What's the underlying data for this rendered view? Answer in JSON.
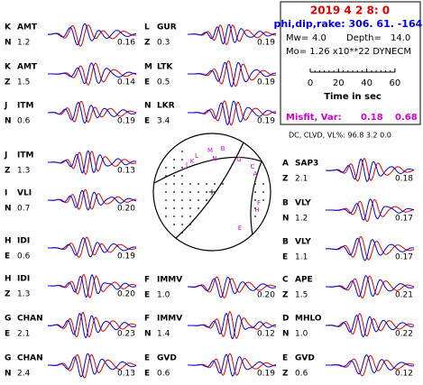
{
  "header": {
    "title": "2019  4  2   8: 0",
    "mechanism": "phi,dip,rake: 306. 61. -164.",
    "mw_label": "Mw=",
    "mw": "4.0",
    "depth_label": "Depth=",
    "depth": "14.0",
    "moment": "Mo=  1.26 x10**22 DYNECM",
    "scale_ticks": [
      "0",
      "20",
      "40",
      "60"
    ],
    "scale_label": "Time  in sec",
    "misfit_label": "Misfit, Var:",
    "misfit": "0.18",
    "var": "0.68",
    "decomposition": "DC, CLVD, VL%:  96.8   3.2   0.0"
  },
  "stations": [
    {
      "id": "K",
      "name": "AMT",
      "component": "N",
      "amplitude": "1.2",
      "fit": "0.16"
    },
    {
      "id": "K",
      "name": "AMT",
      "component": "Z",
      "amplitude": "1.5",
      "fit": "0.14"
    },
    {
      "id": "J",
      "name": "ITM",
      "component": "N",
      "amplitude": "0.6",
      "fit": "0.19"
    },
    {
      "id": "J",
      "name": "ITM",
      "component": "Z",
      "amplitude": "1.3",
      "fit": "0.13"
    },
    {
      "id": "I",
      "name": "VLI",
      "component": "N",
      "amplitude": "0.7",
      "fit": "0.20"
    },
    {
      "id": "H",
      "name": "IDI",
      "component": "E",
      "amplitude": "0.6",
      "fit": "0.19"
    },
    {
      "id": "H",
      "name": "IDI",
      "component": "Z",
      "amplitude": "1.3",
      "fit": "0.20"
    },
    {
      "id": "G",
      "name": "CHAN",
      "component": "E",
      "amplitude": "2.1",
      "fit": "0.23"
    },
    {
      "id": "G",
      "name": "CHAN",
      "component": "N",
      "amplitude": "2.4",
      "fit": "0.13"
    },
    {
      "id": "L",
      "name": "GUR",
      "component": "Z",
      "amplitude": "0.3",
      "fit": "0.19"
    },
    {
      "id": "M",
      "name": "LTK",
      "component": "E",
      "amplitude": "0.5",
      "fit": "0.19"
    },
    {
      "id": "N",
      "name": "LKR",
      "component": "E",
      "amplitude": "3.4",
      "fit": "0.19"
    },
    {
      "id": "F",
      "name": "IMMV",
      "component": "E",
      "amplitude": "1.0",
      "fit": "0.20"
    },
    {
      "id": "F",
      "name": "IMMV",
      "component": "N",
      "amplitude": "1.4",
      "fit": "0.12"
    },
    {
      "id": "E",
      "name": "GVD",
      "component": "E",
      "amplitude": "0.6",
      "fit": "0.19"
    },
    {
      "id": "A",
      "name": "SAP3",
      "component": "Z",
      "amplitude": "2.1",
      "fit": "0.18"
    },
    {
      "id": "B",
      "name": "VLY",
      "component": "N",
      "amplitude": "1.2",
      "fit": "0.17"
    },
    {
      "id": "B",
      "name": "VLY",
      "component": "E",
      "amplitude": "1.1",
      "fit": "0.17"
    },
    {
      "id": "C",
      "name": "APE",
      "component": "Z",
      "amplitude": "1.5",
      "fit": "0.21"
    },
    {
      "id": "D",
      "name": "MHLO",
      "component": "N",
      "amplitude": "1.0",
      "fit": "0.22"
    },
    {
      "id": "E",
      "name": "GVD",
      "component": "Z",
      "amplitude": "0.6",
      "fit": "0.12"
    }
  ],
  "beachball": {
    "labels": [
      "K",
      "L",
      "M",
      "B",
      "N",
      "J",
      "G",
      "C",
      "A",
      "F",
      "H",
      "E"
    ]
  }
}
